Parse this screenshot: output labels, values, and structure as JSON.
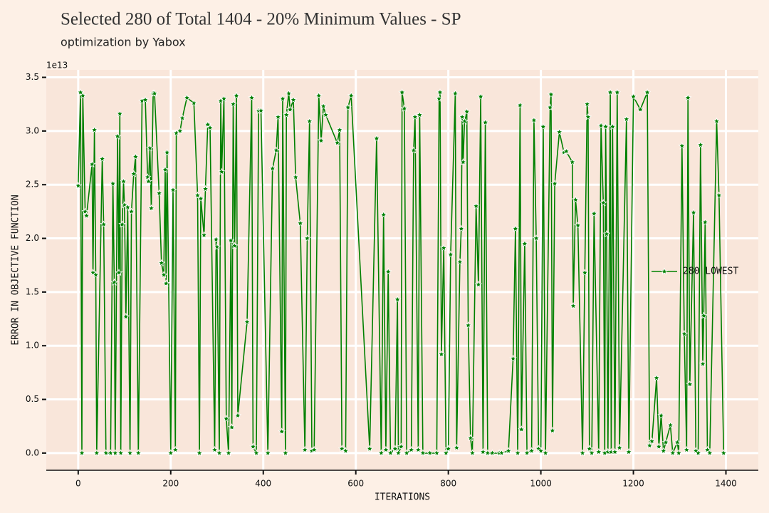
{
  "chart_data": {
    "type": "line",
    "title": "Selected 280 of Total 1404  - 20% Minimum Values - SP",
    "subtitle": "optimization by Yabox",
    "x_label": "ITERATIONS",
    "y_label": "ERROR IN OBJECTIVE FUNCTION",
    "y_offset_label": "1e13",
    "grid": true,
    "legend": "center right",
    "xlim": [
      -69,
      1470
    ],
    "ylim": [
      -0.16,
      3.57
    ],
    "xticks": [
      0,
      200,
      400,
      600,
      800,
      1000,
      1200,
      1400
    ],
    "yticks": [
      {
        "value": 0,
        "label": "0.0"
      },
      0.5,
      {
        "value": 1,
        "label": "1.0"
      },
      1.5,
      {
        "value": 2,
        "label": "2.0"
      },
      2.5,
      {
        "value": 3,
        "label": "3.0"
      },
      3.5
    ],
    "x": [
      0,
      5,
      8,
      10,
      15,
      18,
      30,
      32,
      35,
      38,
      40,
      52,
      55,
      60,
      70,
      75,
      78,
      80,
      85,
      88,
      90,
      92,
      95,
      98,
      100,
      103,
      107,
      112,
      115,
      120,
      124,
      130,
      138,
      145,
      150,
      152,
      155,
      158,
      162,
      165,
      175,
      180,
      185,
      188,
      190,
      192,
      200,
      205,
      210,
      212,
      220,
      225,
      235,
      250,
      258,
      262,
      265,
      272,
      275,
      280,
      285,
      295,
      298,
      300,
      305,
      308,
      310,
      315,
      320,
      325,
      330,
      332,
      335,
      338,
      342,
      345,
      365,
      375,
      378,
      385,
      390,
      395,
      410,
      420,
      428,
      432,
      440,
      442,
      448,
      450,
      455,
      458,
      465,
      470,
      480,
      490,
      495,
      500,
      505,
      510,
      520,
      525,
      530,
      535,
      560,
      565,
      570,
      578,
      583,
      590,
      630,
      645,
      655,
      660,
      665,
      670,
      675,
      685,
      690,
      692,
      698,
      700,
      705,
      710,
      720,
      725,
      728,
      735,
      738,
      745,
      760,
      775,
      780,
      782,
      785,
      790,
      795,
      800,
      805,
      815,
      818,
      825,
      828,
      830,
      832,
      835,
      840,
      843,
      848,
      852,
      860,
      865,
      870,
      875,
      880,
      885,
      895,
      910,
      915,
      930,
      940,
      945,
      950,
      955,
      958,
      965,
      970,
      980,
      985,
      990,
      995,
      1000,
      1005,
      1010,
      1020,
      1022,
      1025,
      1030,
      1040,
      1050,
      1055,
      1068,
      1070,
      1075,
      1080,
      1090,
      1095,
      1100,
      1102,
      1105,
      1110,
      1115,
      1125,
      1130,
      1135,
      1138,
      1140,
      1142,
      1145,
      1150,
      1152,
      1155,
      1160,
      1165,
      1170,
      1185,
      1190,
      1200,
      1215,
      1230,
      1235,
      1240,
      1250,
      1255,
      1260,
      1265,
      1270,
      1280,
      1285,
      1295,
      1298,
      1305,
      1310,
      1315,
      1318,
      1322,
      1330,
      1335,
      1340,
      1345,
      1350,
      1352,
      1355,
      1360,
      1365,
      1380,
      1385,
      1395
    ],
    "series": [
      {
        "name": "280 LOWEST",
        "color": "#008000",
        "values": [
          2.49,
          3.36,
          0,
          3.33,
          2.25,
          2.21,
          2.69,
          1.68,
          3.01,
          1.66,
          0,
          2.74,
          2.13,
          0,
          0,
          2.51,
          1.59,
          0,
          2.95,
          1.68,
          3.16,
          0,
          2.13,
          2.53,
          2.31,
          1.27,
          2.29,
          0,
          2.25,
          2.6,
          2.76,
          0,
          3.28,
          3.29,
          2.57,
          2.53,
          2.84,
          2.28,
          3.35,
          3.35,
          2.42,
          1.77,
          1.66,
          2.64,
          1.58,
          2.8,
          0,
          2.45,
          0.03,
          2.98,
          3,
          3.12,
          3.31,
          3.26,
          2.4,
          0,
          2.37,
          2.03,
          2.46,
          3.06,
          3.03,
          0.03,
          1.99,
          1.92,
          0,
          3.28,
          2.62,
          3.3,
          0.32,
          0,
          1.98,
          0.24,
          3.25,
          1.93,
          3.33,
          0.35,
          1.22,
          3.31,
          0.06,
          0,
          3.19,
          3.19,
          0,
          2.65,
          2.82,
          3.13,
          0.2,
          3.3,
          0,
          3.15,
          3.35,
          3.2,
          3.29,
          2.57,
          2.14,
          0.03,
          2,
          3.09,
          0.02,
          0.03,
          3.33,
          2.91,
          3.23,
          3.15,
          2.89,
          3.01,
          0.04,
          0.02,
          3.22,
          3.33,
          0.04,
          2.93,
          0,
          2.22,
          0.03,
          1.69,
          0,
          0.04,
          1.43,
          0,
          0.06,
          3.36,
          3.21,
          0,
          0.03,
          2.82,
          3.13,
          0.03,
          3.15,
          0,
          0,
          0,
          3.3,
          3.36,
          0.92,
          1.91,
          0,
          0.04,
          1.85,
          3.35,
          0.05,
          1.78,
          2.09,
          3.13,
          2.71,
          3.09,
          3.18,
          1.19,
          0.14,
          0,
          2.3,
          1.57,
          3.32,
          0.01,
          3.08,
          0,
          0,
          0,
          0,
          0.02,
          0.88,
          2.09,
          0,
          3.24,
          0.22,
          1.95,
          0,
          0.02,
          3.1,
          2,
          0.04,
          0.02,
          3.04,
          0,
          3.22,
          3.34,
          0.21,
          2.51,
          2.99,
          2.8,
          2.81,
          2.71,
          1.37,
          2.36,
          2.12,
          0,
          1.68,
          3.25,
          3.13,
          0.04,
          0,
          2.23,
          0.01,
          3.05,
          2.33,
          0,
          3.04,
          2.04,
          0.01,
          3.36,
          0.01,
          3.04,
          0.01,
          3.36,
          0.05,
          3.11,
          0.01,
          3.32,
          3.2,
          3.36,
          0.07,
          0.11,
          0.7,
          0.06,
          0.35,
          0.02,
          0.1,
          0.26,
          0,
          0.1,
          0,
          2.86,
          1.11,
          0.03,
          3.31,
          0.64,
          2.24,
          0.02,
          0,
          2.87,
          0.83,
          1.28,
          2.15,
          0.03,
          0,
          3.09,
          2.4,
          0
        ]
      }
    ]
  }
}
